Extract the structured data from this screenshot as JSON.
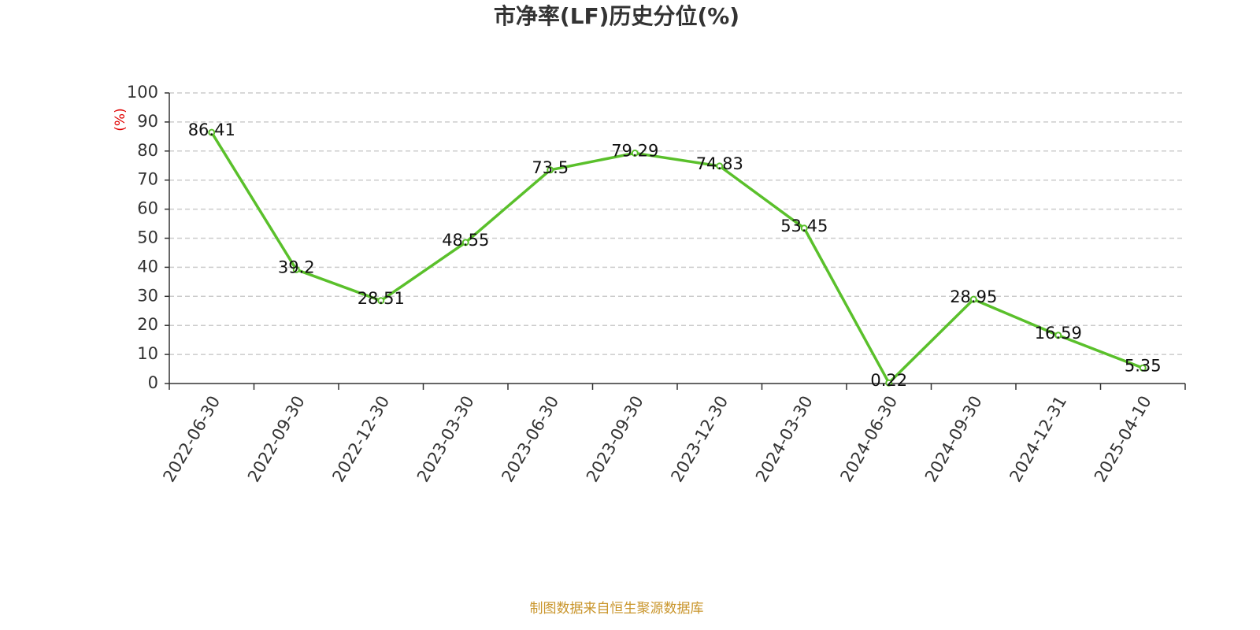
{
  "chart_data": {
    "type": "line",
    "title": "市净率(LF)历史分位(%)",
    "y_label": "(%)",
    "categories": [
      "2022-06-30",
      "2022-09-30",
      "2022-12-30",
      "2023-03-30",
      "2023-06-30",
      "2023-09-30",
      "2023-12-30",
      "2024-03-30",
      "2024-06-30",
      "2024-09-30",
      "2024-12-31",
      "2025-04-10"
    ],
    "values": [
      86.41,
      39.2,
      28.51,
      48.55,
      73.5,
      79.29,
      74.83,
      53.45,
      0.22,
      28.95,
      16.59,
      5.35
    ],
    "color": "#5ac02b",
    "ylim": [
      0,
      100
    ],
    "yticks": [
      0,
      10,
      20,
      30,
      40,
      50,
      60,
      70,
      80,
      90,
      100
    ],
    "grid": true,
    "source": "制图数据来自恒生聚源数据库"
  }
}
